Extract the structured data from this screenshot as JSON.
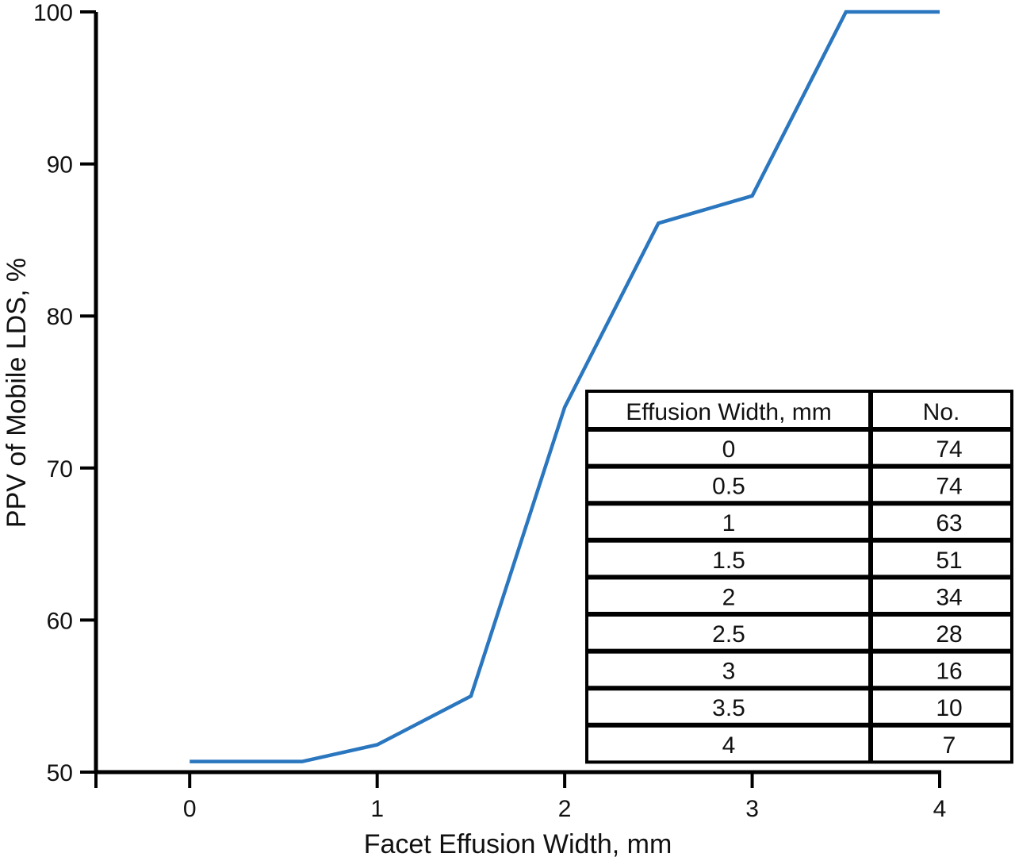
{
  "chart_data": {
    "type": "line",
    "xlabel": "Facet Effusion Width, mm",
    "ylabel": "PPV of Mobile LDS, %",
    "xlim": [
      -0.5,
      4
    ],
    "ylim": [
      50,
      100
    ],
    "x_ticks": [
      "0",
      "1",
      "2",
      "3",
      "4"
    ],
    "y_ticks": [
      "50",
      "60",
      "70",
      "80",
      "90",
      "100"
    ],
    "grid": false,
    "series": [
      {
        "color": "#2a76bf",
        "points": [
          {
            "x": 0,
            "y": 50.7
          },
          {
            "x": 0.6,
            "y": 50.7
          },
          {
            "x": 1,
            "y": 51.8
          },
          {
            "x": 1.5,
            "y": 55
          },
          {
            "x": 2,
            "y": 74
          },
          {
            "x": 2.5,
            "y": 86.1
          },
          {
            "x": 3,
            "y": 87.9
          },
          {
            "x": 3.5,
            "y": 100
          },
          {
            "x": 4,
            "y": 100
          }
        ]
      }
    ],
    "table": {
      "headers": [
        "Effusion Width, mm",
        "No."
      ],
      "rows": [
        [
          "0",
          "74"
        ],
        [
          "0.5",
          "74"
        ],
        [
          "1",
          "63"
        ],
        [
          "1.5",
          "51"
        ],
        [
          "2",
          "34"
        ],
        [
          "2.5",
          "28"
        ],
        [
          "3",
          "16"
        ],
        [
          "3.5",
          "10"
        ],
        [
          "4",
          "7"
        ]
      ]
    }
  }
}
